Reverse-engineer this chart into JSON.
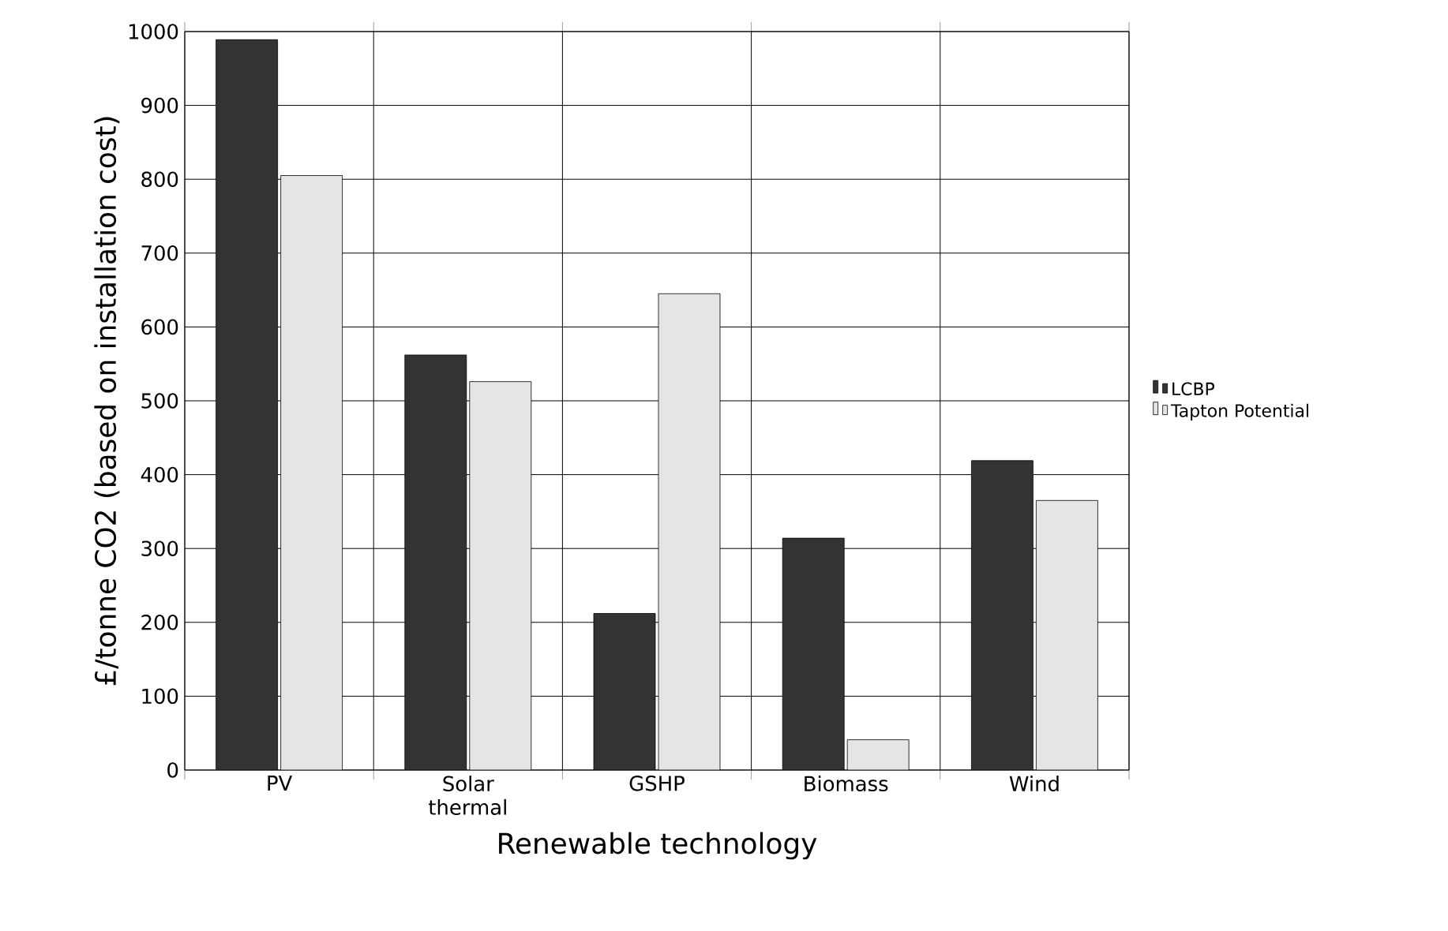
{
  "chart_data": {
    "type": "bar",
    "xlabel": "Renewable technology",
    "ylabel": "£/tonne CO2 (based on installation cost)",
    "categories": [
      "PV",
      "Solar thermal",
      "GSHP",
      "Biomass",
      "Wind"
    ],
    "series": [
      {
        "name": "LCBP",
        "color": "#333333",
        "values": [
          989,
          562,
          212,
          314,
          419
        ]
      },
      {
        "name": "Tapton Potential",
        "color": "#e5e5e5",
        "values": [
          805,
          526,
          645,
          41,
          365
        ]
      }
    ],
    "ylim": [
      0,
      1000
    ],
    "yticks": [
      0,
      100,
      200,
      300,
      400,
      500,
      600,
      700,
      800,
      900,
      1000
    ],
    "grid": true,
    "legend": "right"
  }
}
